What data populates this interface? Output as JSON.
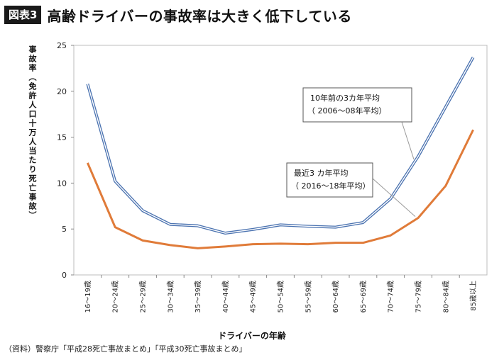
{
  "header": {
    "badge": "図表3",
    "title": "高齢ドライバーの事故率は大きく低下している"
  },
  "source": "（資料）警察庁「平成28死亡事故まとめ」「平成30死亡事故まとめ」",
  "chart_data": {
    "type": "line",
    "xlabel": "ドライバーの年齢",
    "ylabel": "事故率（免許人口十万人当たり死亡事故）",
    "ylim": [
      0,
      25
    ],
    "yticks": [
      0,
      5,
      10,
      15,
      20,
      25
    ],
    "grid": false,
    "categories": [
      "16～19歳",
      "20～24歳",
      "25～29歳",
      "30～34歳",
      "35～39歳",
      "40～44歳",
      "45～49歳",
      "50～54歳",
      "55～59歳",
      "60～64歳",
      "65～69歳",
      "70～74歳",
      "75～79歳",
      "80～84歳",
      "85歳以上"
    ],
    "series": [
      {
        "name": "10年前の3カ年平均（2006～08年平均）",
        "label_lines": [
          "10年前の3カ年平均",
          "（ 2006～08年平均）"
        ],
        "color": "#4a72b0",
        "style": "double",
        "values": [
          20.8,
          10.2,
          7.0,
          5.5,
          5.35,
          4.55,
          4.95,
          5.45,
          5.3,
          5.2,
          5.7,
          8.3,
          12.9,
          18.3,
          23.7
        ]
      },
      {
        "name": "最近3カ年平均（2016～18年平均）",
        "label_lines": [
          "最近3 カ年平均",
          "（ 2016～18年平均）"
        ],
        "color": "#e07b39",
        "style": "solid",
        "values": [
          12.2,
          5.2,
          3.75,
          3.25,
          2.9,
          3.1,
          3.35,
          3.4,
          3.35,
          3.5,
          3.5,
          4.3,
          6.2,
          9.7,
          15.8
        ]
      }
    ]
  }
}
